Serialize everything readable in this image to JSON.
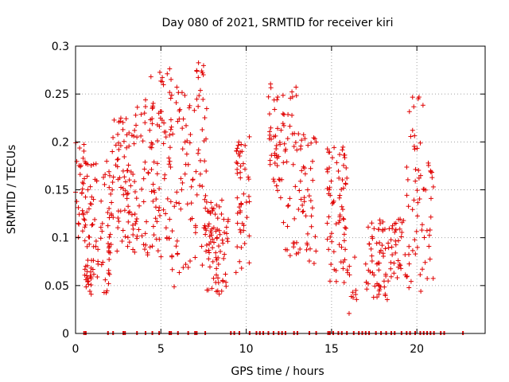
{
  "chart_data": {
    "type": "scatter",
    "title": "Day 080 of 2021, SRMTID for receiver kiri",
    "xlabel": "GPS time / hours",
    "ylabel": "SRMTID / TECUs",
    "xlim": [
      0,
      24
    ],
    "ylim": [
      0,
      0.3
    ],
    "x_ticks": [
      "0",
      "5",
      "10",
      "15",
      "20"
    ],
    "y_ticks": [
      "0",
      "0.05",
      "0.1",
      "0.15",
      "0.2",
      "0.25",
      "0.3"
    ],
    "grid": true,
    "marker": "+",
    "series_color": "#e00000",
    "clusters": [
      {
        "x": [
          0.0,
          0.6
        ],
        "y_lo": 0.09,
        "y_hi": 0.2,
        "n": 30
      },
      {
        "x": [
          0.5,
          2.0
        ],
        "y_lo": 0.04,
        "y_hi": 0.18,
        "n": 90
      },
      {
        "x": [
          1.9,
          3.6
        ],
        "y_lo": 0.08,
        "y_hi": 0.235,
        "n": 90
      },
      {
        "x": [
          3.5,
          4.5
        ],
        "y_lo": 0.08,
        "y_hi": 0.245,
        "n": 40
      },
      {
        "x": [
          4.4,
          5.6
        ],
        "y_lo": 0.06,
        "y_hi": 0.28,
        "n": 70
      },
      {
        "x": [
          5.5,
          7.0
        ],
        "y_lo": 0.04,
        "y_hi": 0.26,
        "n": 60
      },
      {
        "x": [
          7.0,
          7.7
        ],
        "y_lo": 0.07,
        "y_hi": 0.285,
        "n": 40
      },
      {
        "x": [
          7.6,
          9.0
        ],
        "y_lo": 0.04,
        "y_hi": 0.14,
        "n": 80
      },
      {
        "x": [
          9.4,
          10.2
        ],
        "y_lo": 0.05,
        "y_hi": 0.21,
        "n": 50
      },
      {
        "x": [
          11.3,
          12.1
        ],
        "y_lo": 0.14,
        "y_hi": 0.265,
        "n": 40
      },
      {
        "x": [
          12.1,
          13.0
        ],
        "y_lo": 0.08,
        "y_hi": 0.26,
        "n": 40
      },
      {
        "x": [
          13.0,
          14.1
        ],
        "y_lo": 0.07,
        "y_hi": 0.21,
        "n": 45
      },
      {
        "x": [
          14.7,
          15.9
        ],
        "y_lo": 0.05,
        "y_hi": 0.2,
        "n": 70
      },
      {
        "x": [
          15.9,
          16.6
        ],
        "y_lo": 0.02,
        "y_hi": 0.08,
        "n": 12
      },
      {
        "x": [
          17.0,
          18.4
        ],
        "y_lo": 0.035,
        "y_hi": 0.12,
        "n": 60
      },
      {
        "x": [
          18.4,
          19.4
        ],
        "y_lo": 0.05,
        "y_hi": 0.12,
        "n": 35
      },
      {
        "x": [
          19.4,
          20.4
        ],
        "y_lo": 0.035,
        "y_hi": 0.25,
        "n": 45
      },
      {
        "x": [
          20.4,
          21.0
        ],
        "y_lo": 0.05,
        "y_hi": 0.19,
        "n": 20
      }
    ],
    "zero_points_x": [
      0.5,
      0.6,
      1.9,
      2.2,
      2.8,
      2.9,
      3.6,
      4.1,
      4.5,
      4.9,
      5.5,
      5.6,
      6.0,
      6.6,
      7.0,
      7.1,
      7.6,
      9.1,
      9.3,
      9.6,
      10.2,
      10.6,
      10.8,
      11.0,
      11.3,
      11.6,
      11.9,
      12.1,
      12.3,
      12.8,
      13.0,
      13.7,
      14.1,
      14.8,
      14.9,
      15.1,
      15.4,
      15.6,
      15.9,
      16.3,
      16.6,
      16.8,
      17.0,
      17.2,
      17.6,
      17.9,
      18.2,
      18.5,
      18.7,
      19.1,
      19.4,
      19.6,
      19.9,
      20.2,
      20.4,
      20.6,
      20.8,
      21.0,
      21.4,
      21.6,
      22.7
    ]
  }
}
